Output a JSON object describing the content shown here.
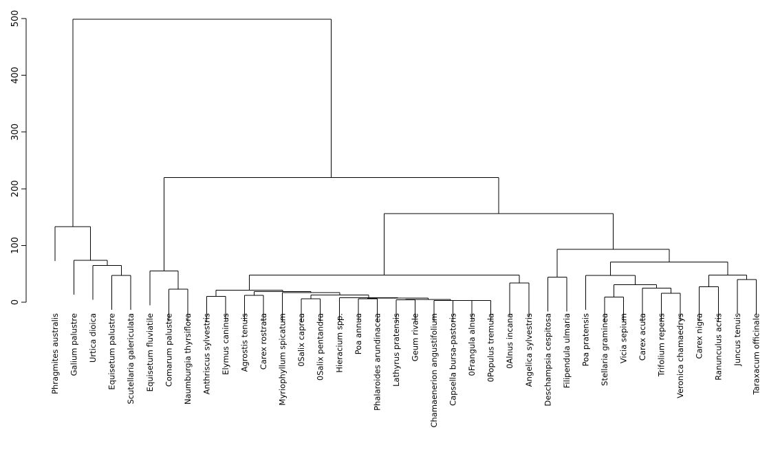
{
  "chart_data": {
    "type": "dendrogram",
    "title": "",
    "xlabel": "",
    "ylabel": "",
    "ylim": [
      0,
      500
    ],
    "yticks": [
      0,
      100,
      200,
      300,
      400,
      500
    ],
    "grid": false,
    "legend": "none",
    "leaves": [
      "Phragmites australis",
      "Galium palustre",
      "Urtica dioica",
      "Equisetum palustre",
      "Scutellaria galericulata",
      "Equisetum fluviatile",
      "Comarum palustre",
      "Naumburgia thyrsiflora",
      "Anthriscus sylvestris",
      "Elymus caninus",
      "Agrostis tenuis",
      "Carex rostrata",
      "Myriophyllum spicatum",
      "0Salix caprea",
      "0Salix pentandra",
      "Hieracium spp.",
      "Poa annua",
      "Phalaroides arundinacea",
      "Lathyrus pratensis",
      "Geum rivale",
      "Chamaenerion angustifolium",
      "Capsella bursa-pastoris",
      "0Frangula alnus",
      "0Populus tremula",
      "0Alnus incana",
      "Angelica sylvestris",
      "Deschampsia cespitosa",
      "Filipendula ulmaria",
      "Poa pratensis",
      "Stellaria graminea",
      "Vicia sepium",
      "Carex acuta",
      "Trifolium repens",
      "Veronica chamaedrys",
      "Carex nigra",
      "Ranunculus acris",
      "Juncus tenuis",
      "Taraxacum officinale"
    ],
    "merges": [
      {
        "id": "m1",
        "a": 22,
        "b": 23,
        "height": 3
      },
      {
        "id": "m2",
        "a": 21,
        "b": "m1",
        "height": 3
      },
      {
        "id": "m3",
        "a": 20,
        "b": "m2",
        "height": 3
      },
      {
        "id": "m4",
        "a": 18,
        "b": 19,
        "height": 4
      },
      {
        "id": "m5",
        "a": "m4",
        "b": "m3",
        "height": 5
      },
      {
        "id": "m6",
        "a": 16,
        "b": 17,
        "height": 6
      },
      {
        "id": "m7",
        "a": "m6",
        "b": "m5",
        "height": 7
      },
      {
        "id": "m8",
        "a": 15,
        "b": "m7",
        "height": 8
      },
      {
        "id": "m9",
        "a": 13,
        "b": 14,
        "height": 6
      },
      {
        "id": "m10",
        "a": "m9",
        "b": "m8",
        "height": 13
      },
      {
        "id": "m11",
        "a": 12,
        "b": "m10",
        "height": 17
      },
      {
        "id": "m12",
        "a": 10,
        "b": 11,
        "height": 12
      },
      {
        "id": "m13",
        "a": "m12",
        "b": "m11",
        "height": 19
      },
      {
        "id": "m14",
        "a": 8,
        "b": 9,
        "height": 10
      },
      {
        "id": "m15",
        "a": "m14",
        "b": "m13",
        "height": 21
      },
      {
        "id": "m16",
        "a": 24,
        "b": 25,
        "height": 34
      },
      {
        "id": "m17",
        "a": "m15",
        "b": "m16",
        "height": 48
      },
      {
        "id": "m18",
        "a": 26,
        "b": 27,
        "height": 44
      },
      {
        "id": "m19",
        "a": 29,
        "b": 30,
        "height": 9
      },
      {
        "id": "m20",
        "a": 32,
        "b": 33,
        "height": 16
      },
      {
        "id": "m21",
        "a": 31,
        "b": "m20",
        "height": 25
      },
      {
        "id": "m22",
        "a": "m19",
        "b": "m21",
        "height": 31
      },
      {
        "id": "m23",
        "a": 28,
        "b": "m22",
        "height": 47
      },
      {
        "id": "m24",
        "a": 34,
        "b": 35,
        "height": 27
      },
      {
        "id": "m25",
        "a": 36,
        "b": 37,
        "height": 40
      },
      {
        "id": "m26",
        "a": "m24",
        "b": "m25",
        "height": 48
      },
      {
        "id": "m27",
        "a": "m23",
        "b": "m26",
        "height": 71
      },
      {
        "id": "m28",
        "a": "m18",
        "b": "m27",
        "height": 93
      },
      {
        "id": "m29",
        "a": "m17",
        "b": "m28",
        "height": 156
      },
      {
        "id": "m30",
        "a": 6,
        "b": 7,
        "height": 23
      },
      {
        "id": "m31",
        "a": 5,
        "b": "m30",
        "height": 55
      },
      {
        "id": "m32",
        "a": "m31",
        "b": "m29",
        "height": 220
      },
      {
        "id": "m33",
        "a": 3,
        "b": 4,
        "height": 47
      },
      {
        "id": "m34",
        "a": 2,
        "b": "m33",
        "height": 65
      },
      {
        "id": "m35",
        "a": 1,
        "b": "m34",
        "height": 74
      },
      {
        "id": "m36",
        "a": 0,
        "b": "m35",
        "height": 133
      },
      {
        "id": "m37",
        "a": "m36",
        "b": "m32",
        "height": 499
      }
    ]
  }
}
